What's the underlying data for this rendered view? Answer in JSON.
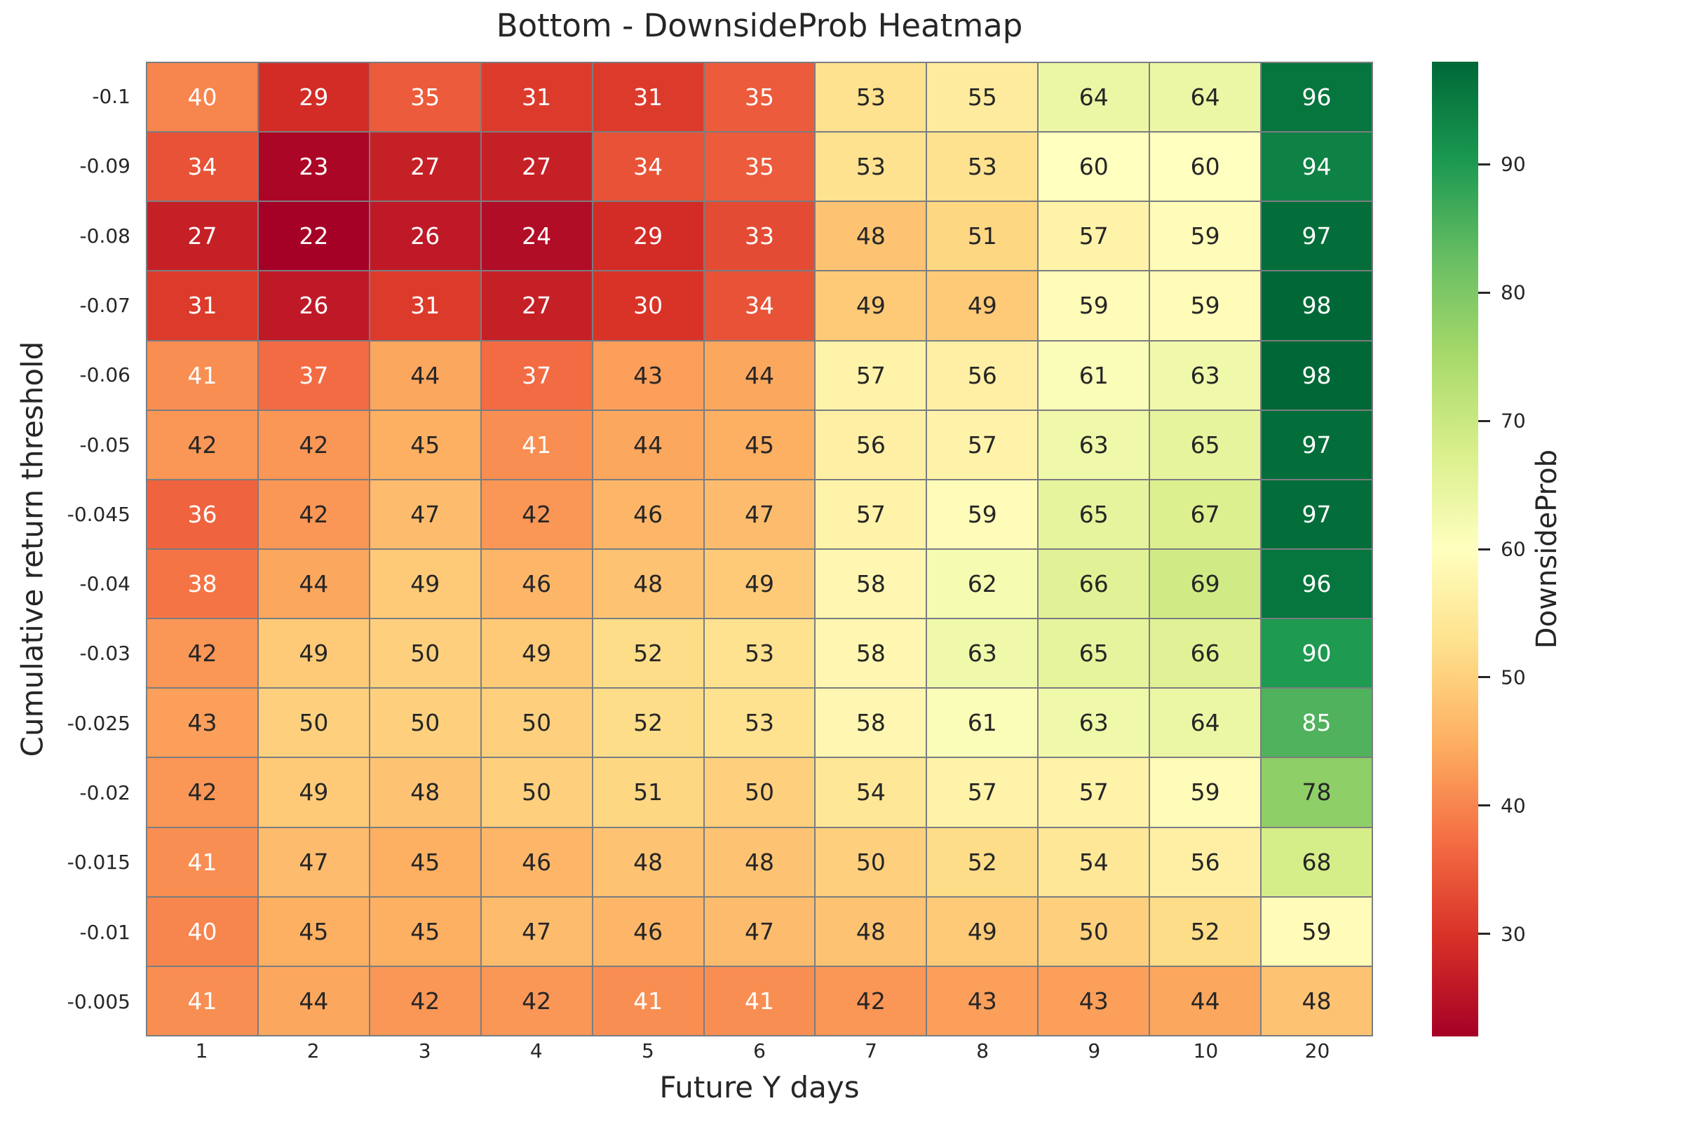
{
  "figure": {
    "background": "#ffffff"
  },
  "chart_data": {
    "type": "heatmap",
    "title": "Bottom - DownsideProb Heatmap",
    "xlabel": "Future Y days",
    "ylabel": "Cumulative return threshold",
    "x_labels": [
      "1",
      "2",
      "3",
      "4",
      "5",
      "6",
      "7",
      "8",
      "9",
      "10",
      "20"
    ],
    "y_labels": [
      "-0.1",
      "-0.09",
      "-0.08",
      "-0.07",
      "-0.06",
      "-0.05",
      "-0.045",
      "-0.04",
      "-0.03",
      "-0.025",
      "-0.02",
      "-0.015",
      "-0.01",
      "-0.005"
    ],
    "values": [
      [
        40,
        29,
        35,
        31,
        31,
        35,
        53,
        55,
        64,
        64,
        96
      ],
      [
        34,
        23,
        27,
        27,
        34,
        35,
        53,
        53,
        60,
        60,
        94
      ],
      [
        27,
        22,
        26,
        24,
        29,
        33,
        48,
        51,
        57,
        59,
        97
      ],
      [
        31,
        26,
        31,
        27,
        30,
        34,
        49,
        49,
        59,
        59,
        98
      ],
      [
        41,
        37,
        44,
        37,
        43,
        44,
        57,
        56,
        61,
        63,
        98
      ],
      [
        42,
        42,
        45,
        41,
        44,
        45,
        56,
        57,
        63,
        65,
        97
      ],
      [
        36,
        42,
        47,
        42,
        46,
        47,
        57,
        59,
        65,
        67,
        97
      ],
      [
        38,
        44,
        49,
        46,
        48,
        49,
        58,
        62,
        66,
        69,
        96
      ],
      [
        42,
        49,
        50,
        49,
        52,
        53,
        58,
        63,
        65,
        66,
        90
      ],
      [
        43,
        50,
        50,
        50,
        52,
        53,
        58,
        61,
        63,
        64,
        85
      ],
      [
        42,
        49,
        48,
        50,
        51,
        50,
        54,
        57,
        57,
        59,
        78
      ],
      [
        41,
        47,
        45,
        46,
        48,
        48,
        50,
        52,
        54,
        56,
        68
      ],
      [
        40,
        45,
        45,
        47,
        46,
        47,
        48,
        49,
        50,
        52,
        59
      ],
      [
        41,
        44,
        42,
        42,
        41,
        41,
        42,
        43,
        43,
        44,
        48
      ]
    ],
    "vmin": 22,
    "vmax": 98,
    "colormap": "RdYlGn",
    "colormap_anchors": [
      "#a50026",
      "#d73027",
      "#f46d43",
      "#fdae61",
      "#fee08b",
      "#ffffbf",
      "#d9ef8b",
      "#a6d96a",
      "#66bd63",
      "#1a9850",
      "#006837"
    ],
    "colorbar": {
      "label": "DownsideProb",
      "ticks": [
        "30",
        "40",
        "50",
        "60",
        "70",
        "80",
        "90"
      ]
    },
    "grid_color": "#7a7d80",
    "annot_dark_color": "#262626",
    "annot_light_color": "#ffffff",
    "legend_position": "right colorbar",
    "grid": "cell borders on"
  }
}
